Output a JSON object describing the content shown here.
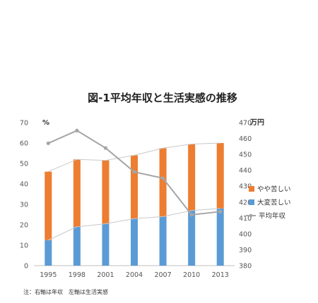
{
  "chart_data": {
    "type": "bar",
    "title": "図-1平均年収と生活実感の推移",
    "categories": [
      "1995",
      "1998",
      "2001",
      "2004",
      "2007",
      "2010",
      "2013"
    ],
    "left_axis": {
      "unit_label": "%",
      "ylim": [
        0,
        70
      ],
      "ticks": [
        "0",
        "10",
        "20",
        "30",
        "40",
        "50",
        "60",
        "70"
      ]
    },
    "right_axis": {
      "unit_label": "万円",
      "ylim": [
        380,
        470
      ],
      "ticks": [
        "380",
        "390",
        "400",
        "410",
        "420",
        "430",
        "440",
        "450",
        "460",
        "470"
      ]
    },
    "series": [
      {
        "name": "大変苦しい",
        "type": "stacked-bar",
        "axis": "left",
        "color": "#5b9bd5",
        "values": [
          12.5,
          19,
          20.5,
          23,
          24,
          27,
          28
        ]
      },
      {
        "name": "やや苦しい",
        "type": "stacked-bar",
        "axis": "left",
        "color": "#ed7d31",
        "values": [
          33.5,
          33,
          31,
          31,
          33.5,
          32.5,
          32
        ]
      },
      {
        "name": "平均年収",
        "type": "line",
        "axis": "right",
        "color": "#a5a5a5",
        "values": [
          457,
          465,
          454,
          439,
          435,
          412,
          414
        ]
      }
    ],
    "legend": [
      "やや苦しい",
      "大変苦しい",
      "平均年収"
    ],
    "legend_position": "right"
  },
  "footnote": "注：右軸は年収　左軸は生活実感"
}
